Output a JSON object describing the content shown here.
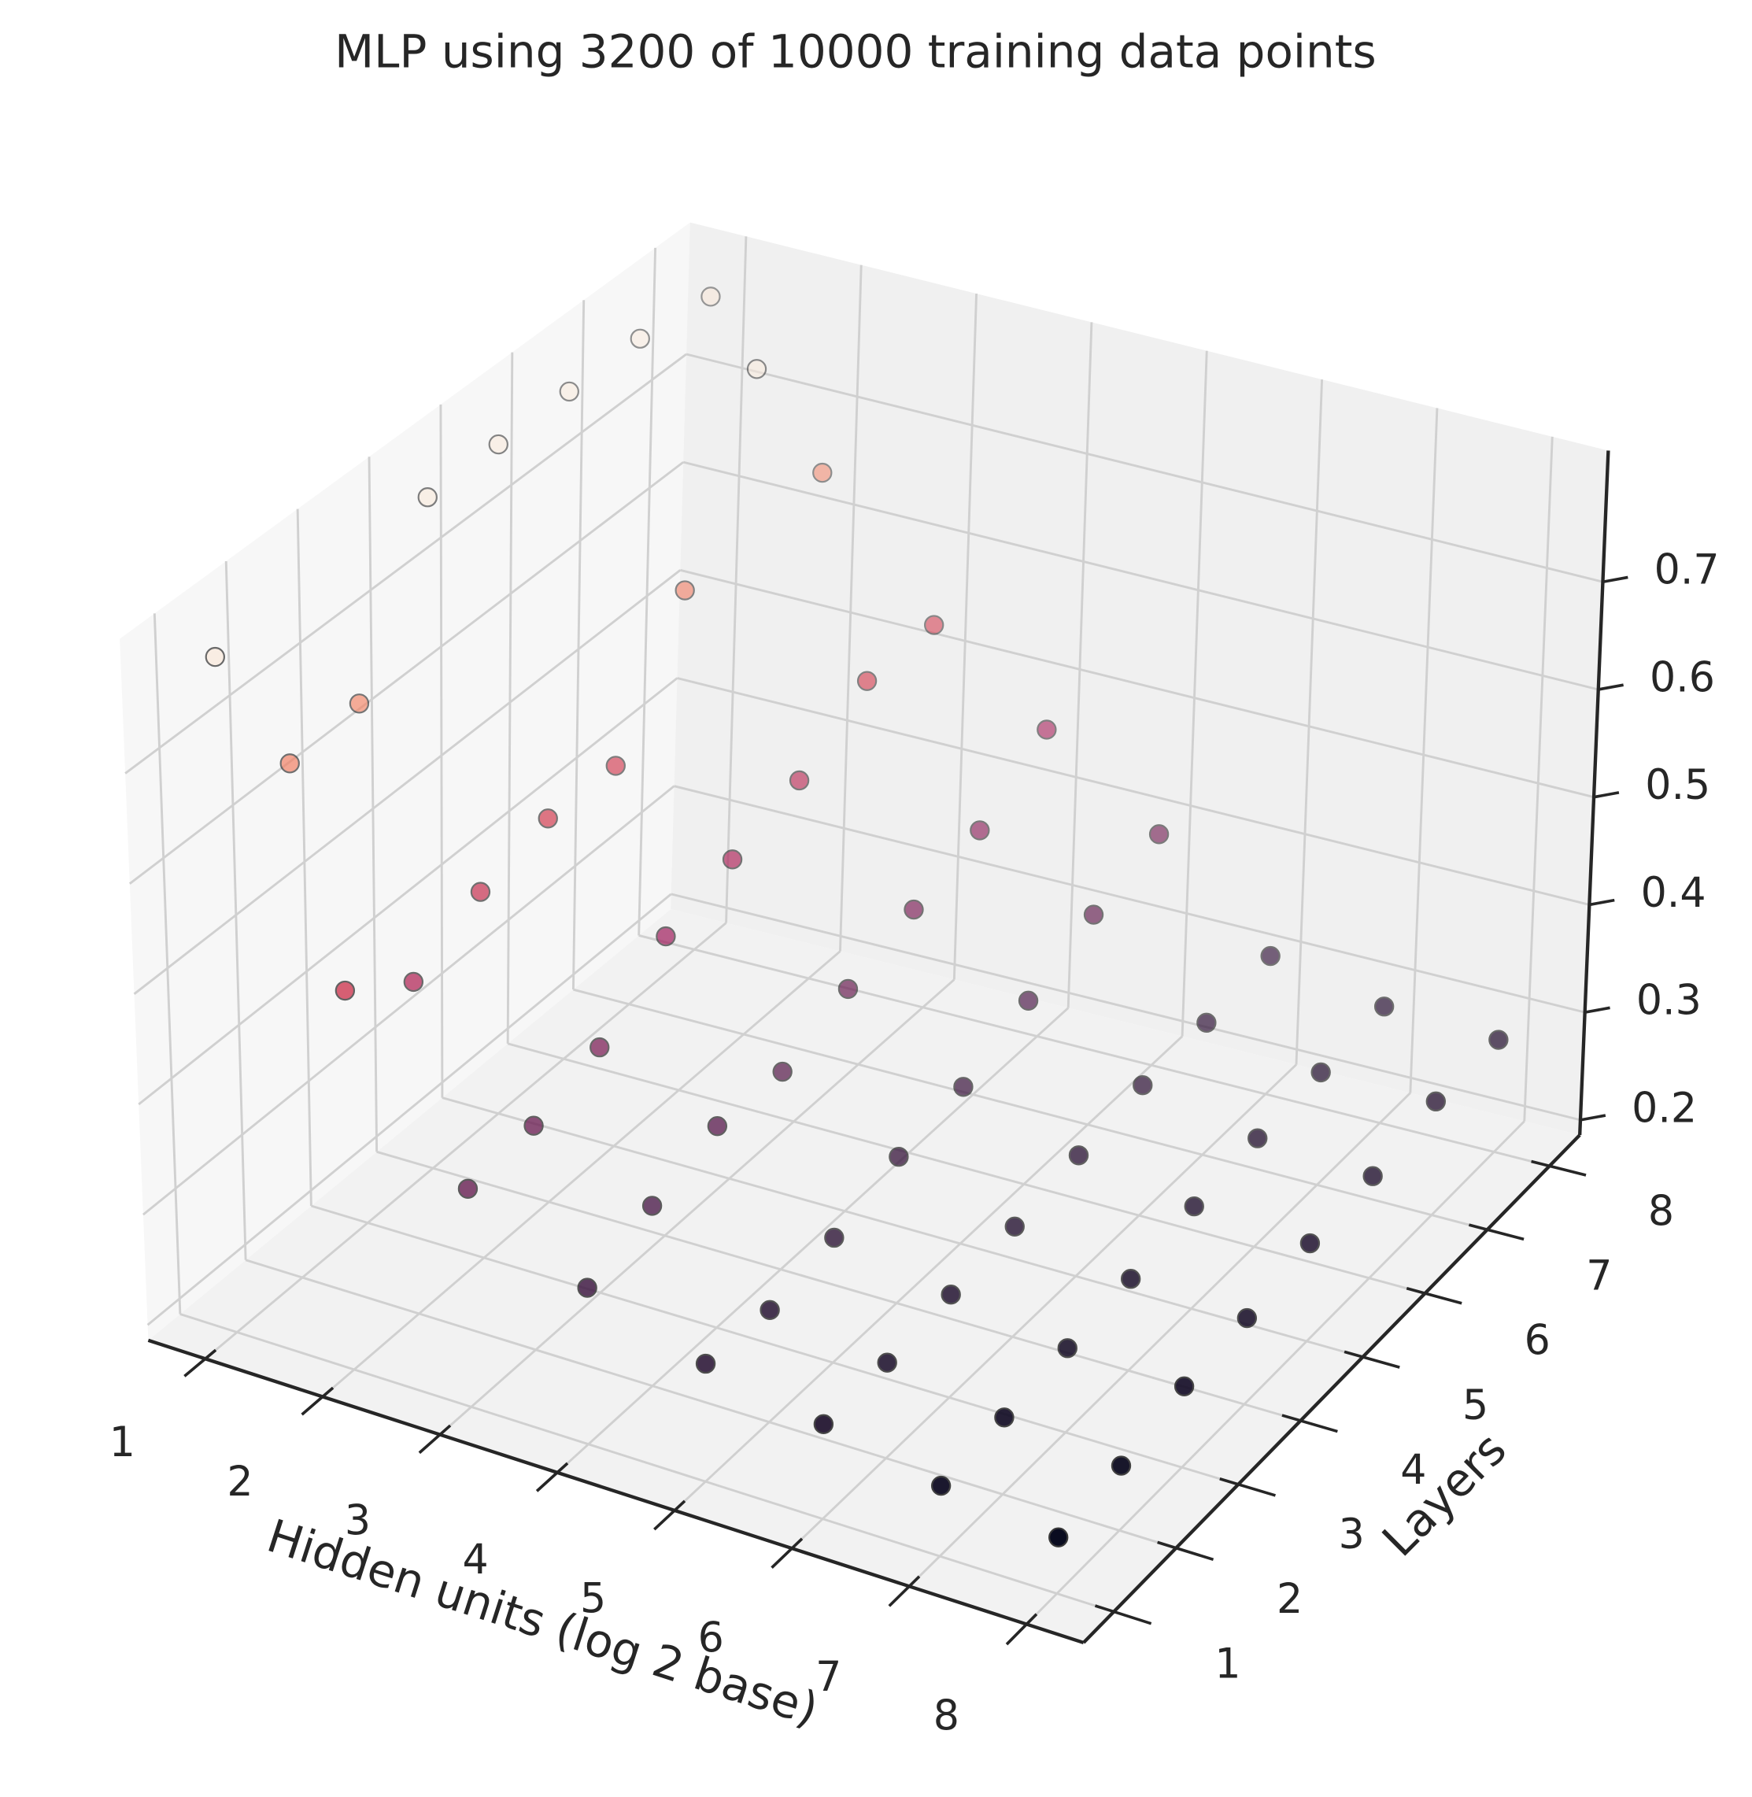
{
  "chart_data": {
    "type": "scatter3d",
    "title": "MLP using 3200 of 10000 training data points",
    "xlabel": "Hidden units (log 2 base)",
    "ylabel": "Layers",
    "colormap": "rocket",
    "xlim": [
      0.514,
      8.486
    ],
    "ylim": [
      0.514,
      8.486
    ],
    "zlim": [
      0.186,
      0.822
    ],
    "xticks": [
      1,
      2,
      3,
      4,
      5,
      6,
      7,
      8
    ],
    "yticks": [
      1,
      2,
      3,
      4,
      5,
      6,
      7,
      8
    ],
    "zticks": [
      0.2,
      0.3,
      0.4,
      0.5,
      0.6,
      0.7
    ],
    "grid": true,
    "series": [
      {
        "x": [
          1,
          1,
          1,
          1,
          1,
          1,
          1,
          1,
          2,
          2,
          2,
          2,
          2,
          2,
          2,
          2,
          3,
          3,
          3,
          3,
          3,
          3,
          3,
          3,
          4,
          4,
          4,
          4,
          4,
          4,
          4,
          4,
          5,
          5,
          5,
          5,
          5,
          5,
          5,
          5,
          6,
          6,
          6,
          6,
          6,
          6,
          6,
          6,
          7,
          7,
          7,
          7,
          7,
          7,
          7,
          7,
          8,
          8,
          8,
          8,
          8,
          8,
          8,
          8
        ],
        "y": [
          1,
          2,
          3,
          4,
          5,
          6,
          7,
          8,
          1,
          2,
          3,
          4,
          5,
          6,
          7,
          8,
          1,
          2,
          3,
          4,
          5,
          6,
          7,
          8,
          1,
          2,
          3,
          4,
          5,
          6,
          7,
          8,
          1,
          2,
          3,
          4,
          5,
          6,
          7,
          8,
          1,
          2,
          3,
          4,
          5,
          6,
          7,
          8,
          1,
          2,
          3,
          4,
          5,
          6,
          7,
          8,
          1,
          2,
          3,
          4,
          5,
          6,
          7,
          8
        ],
        "z": [
          0.799,
          0.654,
          0.66,
          0.8,
          0.8,
          0.8,
          0.8,
          0.79,
          0.53,
          0.488,
          0.52,
          0.537,
          0.535,
          0.646,
          0.8,
          0.654,
          0.384,
          0.39,
          0.41,
          0.46,
          0.479,
          0.5,
          0.54,
          0.54,
          0.328,
          0.35,
          0.37,
          0.367,
          0.39,
          0.41,
          0.43,
          0.47,
          0.293,
          0.288,
          0.3,
          0.32,
          0.33,
          0.355,
          0.38,
          0.4,
          0.272,
          0.273,
          0.28,
          0.287,
          0.297,
          0.306,
          0.308,
          0.314,
          0.25,
          0.256,
          0.263,
          0.27,
          0.28,
          0.286,
          0.29,
          0.294,
          0.237,
          0.245,
          0.26,
          0.265,
          0.276,
          0.28,
          0.291,
          0.29
        ]
      }
    ]
  }
}
